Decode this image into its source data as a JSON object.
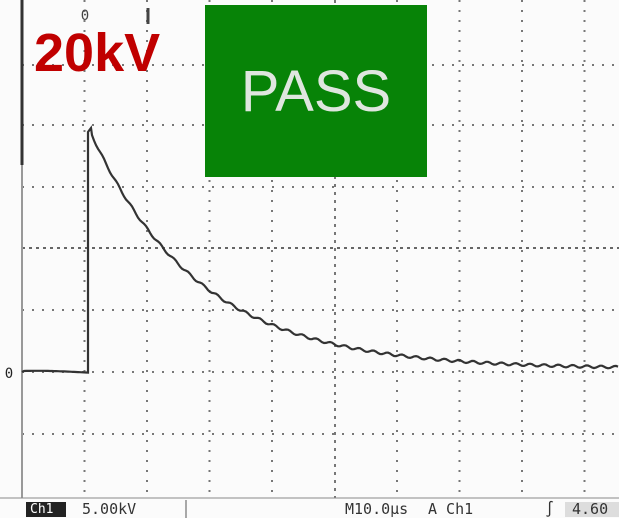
{
  "overlay": {
    "voltage": "20kV",
    "result": "PASS"
  },
  "markers": {
    "trigger_position": "0",
    "trigger_level": "0"
  },
  "status_bar": {
    "channel": "Ch1",
    "scale": "5.00kV",
    "timebase": "M10.0µs",
    "trigger_source": "A Ch1",
    "trigger_slope": "∫",
    "trigger_value": "4.60"
  }
}
